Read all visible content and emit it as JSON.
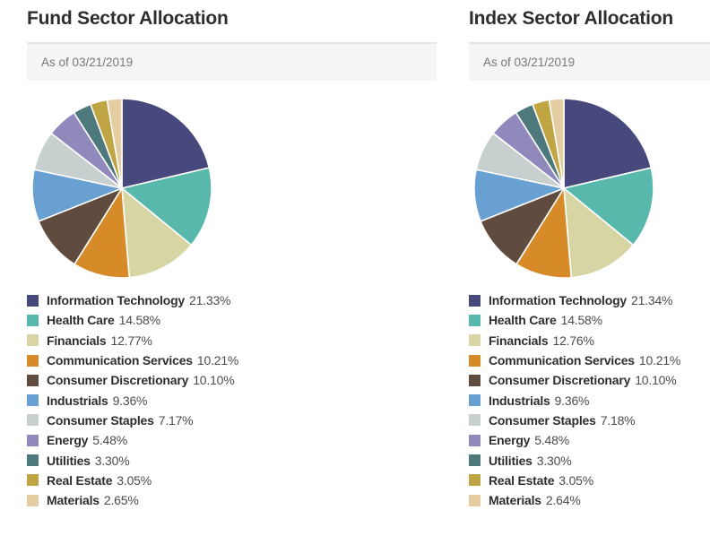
{
  "chart_data": [
    {
      "type": "pie",
      "title": "Fund Sector Allocation",
      "subtitle": "As of 03/21/2019",
      "labels": [
        "Information Technology",
        "Health Care",
        "Financials",
        "Communication Services",
        "Consumer Discretionary",
        "Industrials",
        "Consumer Staples",
        "Energy",
        "Utilities",
        "Real Estate",
        "Materials"
      ],
      "values": [
        21.33,
        14.58,
        12.77,
        10.21,
        10.1,
        9.36,
        7.17,
        5.48,
        3.3,
        3.05,
        2.65
      ],
      "colors": [
        "#47487b",
        "#58b8ac",
        "#d8d5a4",
        "#d78b28",
        "#5f4c3f",
        "#67a0d1",
        "#c8d0cf",
        "#908abc",
        "#4e797c",
        "#bfa543",
        "#e3cda1"
      ],
      "unit": "%",
      "start_angle_deg": -90,
      "direction": "clockwise",
      "legend_position": "bottom",
      "separator_color": "#ffffff"
    },
    {
      "type": "pie",
      "title": "Index Sector Allocation",
      "subtitle": "As of 03/21/2019",
      "labels": [
        "Information Technology",
        "Health Care",
        "Financials",
        "Communication Services",
        "Consumer Discretionary",
        "Industrials",
        "Consumer Staples",
        "Energy",
        "Utilities",
        "Real Estate",
        "Materials"
      ],
      "values": [
        21.34,
        14.58,
        12.76,
        10.21,
        10.1,
        9.36,
        7.18,
        5.48,
        3.3,
        3.05,
        2.64
      ],
      "colors": [
        "#47487b",
        "#58b8ac",
        "#d8d5a4",
        "#d78b28",
        "#5f4c3f",
        "#67a0d1",
        "#c8d0cf",
        "#908abc",
        "#4e797c",
        "#bfa543",
        "#e3cda1"
      ],
      "unit": "%",
      "start_angle_deg": -90,
      "direction": "clockwise",
      "legend_position": "bottom",
      "separator_color": "#ffffff"
    }
  ],
  "ui": {
    "bar_background": "#f5f5f5",
    "bar_border": "#e4e4e4",
    "title_color": "#2e2e2e",
    "asof_text_color": "#75787b"
  }
}
